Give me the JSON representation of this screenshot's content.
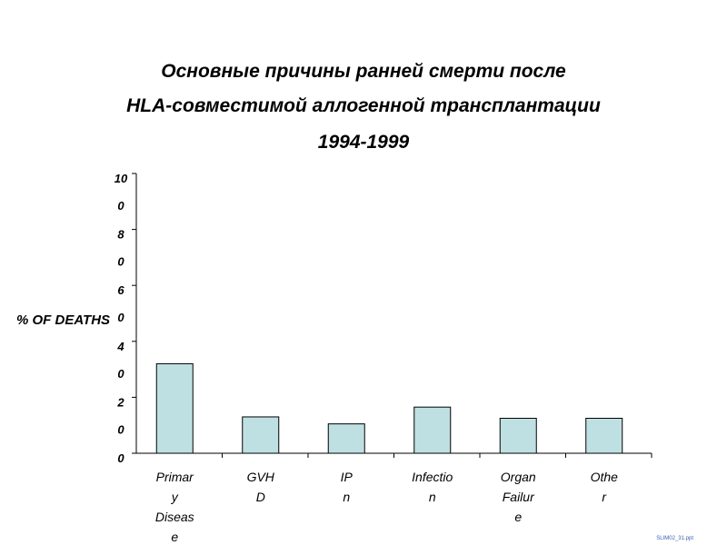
{
  "title_lines": [
    "Основные причины ранней смерти после",
    "HLA-совместимой аллогенной трансплантации",
    "1994-1999"
  ],
  "footer_text": "SLIM02_31.ppt",
  "chart_data": {
    "type": "bar",
    "title": "Основные причины ранней смерти после HLA-совместимой аллогенной трансплантации 1994-1999",
    "ylabel": "% OF DEATHS",
    "xlabel": "",
    "ylim": [
      0,
      100
    ],
    "yticks": [
      0,
      20,
      40,
      60,
      80,
      100
    ],
    "ytick_labels": [
      [
        "0"
      ],
      [
        "2",
        "0"
      ],
      [
        "4",
        "0"
      ],
      [
        "6",
        "0"
      ],
      [
        "8",
        "0"
      ],
      [
        "10",
        "0"
      ]
    ],
    "categories": [
      "Primary Disease",
      "GVHD",
      "IPn",
      "Infection",
      "Organ Failure",
      "Other"
    ],
    "category_label_lines": [
      [
        "Primar",
        "y",
        "Diseas",
        "e"
      ],
      [
        "GVH",
        "D"
      ],
      [
        "IP",
        "n"
      ],
      [
        "Infectio",
        "n"
      ],
      [
        "Organ",
        "Failur",
        "e"
      ],
      [
        "Othe",
        "r"
      ]
    ],
    "values": [
      32,
      13,
      10.5,
      16.5,
      12.5,
      12.5
    ],
    "bar_color": "#bfe0e2",
    "bar_edge": "#000000",
    "grid": false,
    "legend": "none"
  }
}
